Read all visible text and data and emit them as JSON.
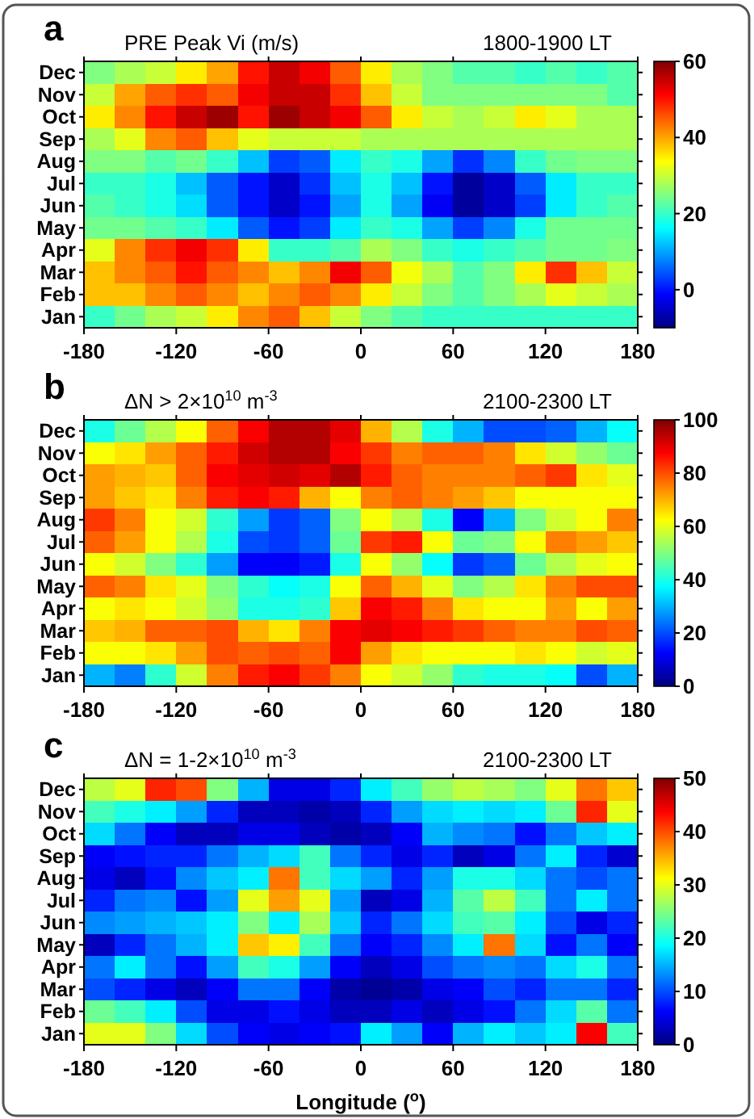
{
  "chart_data": [
    {
      "type": "heatmap",
      "title": "a",
      "annotations": [
        "PRE Peak Vi (m/s)",
        "1800-1900 LT"
      ],
      "x": [
        -170,
        -150,
        -130,
        -110,
        -90,
        -70,
        -50,
        -30,
        -10,
        10,
        30,
        50,
        70,
        90,
        110,
        130,
        150,
        170
      ],
      "xlim": [
        -180,
        180
      ],
      "xticks": [
        -180,
        -120,
        -60,
        0,
        60,
        120,
        180
      ],
      "y_categories": [
        "Dec",
        "Nov",
        "Oct",
        "Sep",
        "Aug",
        "Jul",
        "Jun",
        "May",
        "Apr",
        "Mar",
        "Feb",
        "Jan"
      ],
      "cells": [
        [
          25,
          28,
          30,
          35,
          40,
          50,
          55,
          52,
          45,
          35,
          28,
          25,
          22,
          22,
          20,
          22,
          20,
          22
        ],
        [
          30,
          40,
          45,
          48,
          45,
          52,
          55,
          55,
          48,
          38,
          30,
          25,
          25,
          25,
          25,
          25,
          25,
          22
        ],
        [
          35,
          42,
          50,
          55,
          58,
          50,
          58,
          55,
          52,
          45,
          35,
          30,
          28,
          30,
          35,
          32,
          28,
          28
        ],
        [
          28,
          32,
          42,
          45,
          38,
          32,
          30,
          30,
          30,
          28,
          28,
          28,
          28,
          28,
          28,
          28,
          28,
          28
        ],
        [
          25,
          25,
          22,
          24,
          20,
          12,
          3,
          5,
          15,
          20,
          18,
          10,
          2,
          8,
          20,
          24,
          25,
          25
        ],
        [
          20,
          20,
          18,
          12,
          5,
          0,
          -5,
          2,
          12,
          18,
          12,
          0,
          -8,
          -5,
          5,
          15,
          20,
          20
        ],
        [
          22,
          20,
          18,
          14,
          5,
          0,
          -5,
          0,
          10,
          18,
          10,
          -2,
          -8,
          -5,
          3,
          15,
          20,
          22
        ],
        [
          24,
          24,
          22,
          20,
          15,
          5,
          0,
          3,
          15,
          20,
          18,
          10,
          3,
          8,
          18,
          24,
          24,
          24
        ],
        [
          32,
          42,
          48,
          52,
          48,
          35,
          20,
          20,
          22,
          28,
          25,
          20,
          18,
          20,
          22,
          24,
          24,
          25
        ],
        [
          38,
          42,
          45,
          50,
          45,
          42,
          38,
          42,
          52,
          45,
          33,
          28,
          22,
          25,
          35,
          48,
          38,
          30
        ],
        [
          38,
          38,
          42,
          45,
          42,
          38,
          42,
          45,
          42,
          35,
          30,
          25,
          22,
          25,
          28,
          32,
          30,
          28
        ],
        [
          20,
          24,
          28,
          30,
          35,
          42,
          45,
          38,
          30,
          25,
          22,
          20,
          20,
          20,
          20,
          20,
          20,
          20
        ]
      ],
      "clim": [
        -10,
        60
      ],
      "cticks": [
        0,
        20,
        40,
        60
      ]
    },
    {
      "type": "heatmap",
      "title": "b",
      "annotations": [
        "ΔN > 2×10$^{10}$ m$^{-3}$",
        "2100-2300 LT"
      ],
      "x": [
        -170,
        -150,
        -130,
        -110,
        -90,
        -70,
        -50,
        -30,
        -10,
        10,
        30,
        50,
        70,
        90,
        110,
        130,
        150,
        170
      ],
      "xlim": [
        -180,
        180
      ],
      "xticks": [
        -180,
        -120,
        -60,
        0,
        60,
        120,
        180
      ],
      "y_categories": [
        "Dec",
        "Nov",
        "Oct",
        "Sep",
        "Aug",
        "Jul",
        "Jun",
        "May",
        "Apr",
        "Mar",
        "Feb",
        "Jan"
      ],
      "cells": [
        [
          40,
          48,
          55,
          62,
          78,
          88,
          95,
          95,
          90,
          70,
          55,
          40,
          30,
          20,
          20,
          22,
          30,
          38
        ],
        [
          62,
          65,
          72,
          78,
          85,
          92,
          95,
          95,
          88,
          82,
          75,
          78,
          78,
          75,
          65,
          58,
          52,
          48
        ],
        [
          72,
          70,
          68,
          78,
          88,
          90,
          92,
          90,
          95,
          85,
          78,
          75,
          75,
          75,
          78,
          82,
          65,
          60
        ],
        [
          72,
          68,
          65,
          75,
          85,
          88,
          85,
          70,
          62,
          75,
          78,
          75,
          72,
          68,
          62,
          62,
          62,
          62
        ],
        [
          82,
          75,
          62,
          58,
          42,
          28,
          18,
          22,
          50,
          62,
          55,
          40,
          12,
          30,
          50,
          58,
          62,
          75
        ],
        [
          78,
          72,
          62,
          55,
          40,
          20,
          18,
          22,
          48,
          82,
          85,
          62,
          48,
          50,
          62,
          75,
          72,
          68
        ],
        [
          62,
          58,
          50,
          42,
          28,
          12,
          12,
          15,
          40,
          62,
          52,
          38,
          18,
          22,
          48,
          55,
          60,
          62
        ],
        [
          78,
          75,
          65,
          60,
          50,
          42,
          38,
          40,
          62,
          78,
          70,
          60,
          50,
          55,
          65,
          75,
          80,
          80
        ],
        [
          62,
          65,
          62,
          58,
          52,
          40,
          40,
          42,
          68,
          88,
          85,
          75,
          65,
          62,
          62,
          72,
          62,
          72
        ],
        [
          68,
          70,
          78,
          78,
          80,
          70,
          65,
          75,
          88,
          90,
          88,
          85,
          82,
          78,
          75,
          75,
          80,
          78
        ],
        [
          62,
          62,
          65,
          72,
          80,
          78,
          80,
          78,
          88,
          72,
          65,
          62,
          62,
          62,
          65,
          62,
          58,
          60
        ],
        [
          30,
          25,
          42,
          58,
          75,
          85,
          88,
          82,
          75,
          62,
          58,
          52,
          42,
          40,
          40,
          38,
          20,
          30
        ]
      ],
      "clim": [
        0,
        100
      ],
      "cticks": [
        0,
        20,
        40,
        60,
        80,
        100
      ]
    },
    {
      "type": "heatmap",
      "title": "c",
      "annotations": [
        "ΔN = 1-2×10$^{10}$ m$^{-3}$",
        "2100-2300 LT"
      ],
      "xlabel": "Longitude ($^{o}$)",
      "x": [
        -170,
        -150,
        -130,
        -110,
        -90,
        -70,
        -50,
        -30,
        -10,
        10,
        30,
        50,
        70,
        90,
        110,
        130,
        150,
        170
      ],
      "xlim": [
        -180,
        180
      ],
      "xticks": [
        -180,
        -120,
        -60,
        0,
        60,
        120,
        180
      ],
      "y_categories": [
        "Dec",
        "Nov",
        "Oct",
        "Sep",
        "Aug",
        "Jul",
        "Jun",
        "May",
        "Apr",
        "Mar",
        "Feb",
        "Jan"
      ],
      "cells": [
        [
          28,
          30,
          42,
          40,
          25,
          15,
          5,
          5,
          8,
          18,
          22,
          26,
          28,
          27,
          25,
          30,
          38,
          34
        ],
        [
          22,
          20,
          18,
          14,
          8,
          3,
          3,
          2,
          3,
          8,
          14,
          17,
          18,
          17,
          18,
          24,
          42,
          30
        ],
        [
          17,
          12,
          6,
          3,
          3,
          5,
          5,
          3,
          2,
          3,
          6,
          15,
          13,
          12,
          7,
          12,
          16,
          18
        ],
        [
          6,
          7,
          8,
          8,
          12,
          15,
          17,
          22,
          12,
          8,
          5,
          8,
          3,
          5,
          12,
          18,
          8,
          4
        ],
        [
          5,
          3,
          7,
          13,
          16,
          18,
          38,
          22,
          17,
          14,
          8,
          14,
          20,
          20,
          17,
          12,
          10,
          12
        ],
        [
          8,
          12,
          13,
          7,
          14,
          30,
          36,
          30,
          14,
          3,
          5,
          15,
          23,
          28,
          22,
          12,
          18,
          12
        ],
        [
          13,
          14,
          15,
          16,
          18,
          25,
          18,
          27,
          16,
          8,
          12,
          17,
          22,
          23,
          18,
          10,
          5,
          8
        ],
        [
          3,
          8,
          12,
          15,
          18,
          34,
          32,
          22,
          12,
          6,
          8,
          13,
          18,
          38,
          17,
          7,
          12,
          6
        ],
        [
          12,
          18,
          12,
          7,
          14,
          22,
          20,
          14,
          6,
          3,
          5,
          10,
          12,
          13,
          12,
          17,
          20,
          12
        ],
        [
          10,
          8,
          5,
          3,
          6,
          12,
          12,
          6,
          2,
          1,
          2,
          5,
          6,
          10,
          8,
          12,
          12,
          8
        ],
        [
          24,
          22,
          18,
          10,
          5,
          5,
          7,
          5,
          3,
          3,
          5,
          3,
          5,
          7,
          12,
          17,
          23,
          12
        ],
        [
          30,
          30,
          25,
          17,
          10,
          6,
          5,
          6,
          7,
          18,
          14,
          6,
          15,
          18,
          16,
          18,
          44,
          22
        ]
      ],
      "clim": [
        0,
        50
      ],
      "cticks": [
        0,
        10,
        20,
        30,
        40,
        50
      ]
    }
  ]
}
